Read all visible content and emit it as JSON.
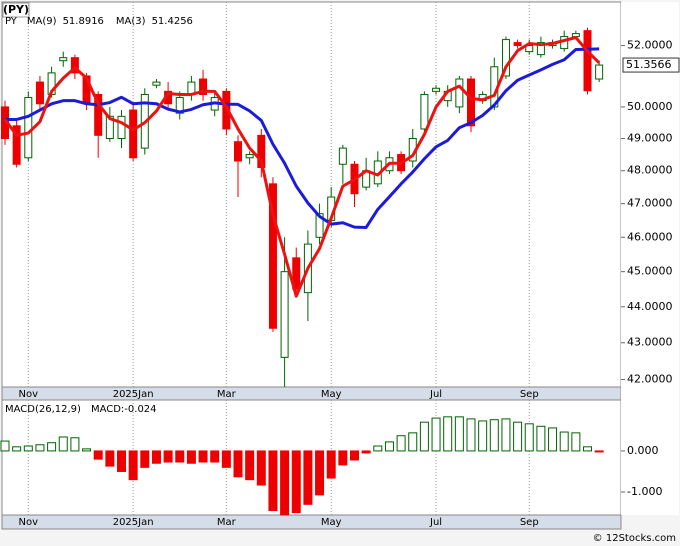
{
  "chart_data": [
    {
      "type": "candlestick",
      "title": "(PY)",
      "ticker": "PY",
      "ticker_color": "#008800",
      "categories": [
        null,
        null,
        "Nov",
        null,
        null,
        null,
        null,
        null,
        null,
        null,
        null,
        "2025Jan",
        null,
        null,
        null,
        null,
        null,
        null,
        null,
        "Mar",
        null,
        null,
        null,
        null,
        null,
        null,
        null,
        null,
        "May",
        null,
        null,
        null,
        null,
        null,
        null,
        null,
        null,
        "Jul",
        null,
        null,
        null,
        null,
        null,
        null,
        null,
        "Sep",
        null,
        null,
        null,
        null,
        null,
        null
      ],
      "open": [
        50.0,
        49.4,
        48.4,
        50.8,
        50.4,
        51.5,
        51.6,
        51.0,
        50.4,
        49.0,
        49.0,
        49.9,
        48.7,
        50.7,
        50.5,
        49.8,
        50.4,
        50.9,
        49.9,
        50.5,
        48.9,
        48.4,
        49.1,
        47.6,
        42.6,
        45.4,
        44.4,
        46.0,
        46.5,
        48.2,
        48.2,
        47.5,
        47.6,
        48.0,
        48.5,
        48.3,
        49.3,
        50.5,
        50.2,
        50.0,
        50.9,
        50.2,
        50.0,
        51.0,
        52.1,
        51.8,
        51.7,
        52.0,
        51.9,
        52.3,
        52.5,
        50.9
      ],
      "high": [
        50.2,
        49.6,
        50.5,
        51.0,
        51.3,
        51.8,
        51.7,
        51.1,
        50.5,
        50.0,
        49.9,
        50.1,
        50.6,
        50.9,
        50.8,
        50.5,
        51.0,
        51.2,
        50.5,
        50.6,
        49.1,
        48.6,
        49.3,
        47.8,
        46.0,
        45.7,
        46.2,
        47.0,
        47.5,
        48.8,
        48.3,
        48.4,
        48.6,
        48.6,
        48.6,
        49.3,
        50.5,
        50.7,
        50.7,
        51.0,
        51.0,
        50.5,
        51.6,
        52.3,
        52.2,
        52.2,
        52.3,
        52.2,
        52.5,
        52.5,
        52.6,
        51.5
      ],
      "low": [
        48.8,
        48.1,
        48.3,
        49.9,
        50.3,
        51.3,
        50.9,
        49.9,
        48.4,
        48.9,
        48.7,
        48.3,
        48.5,
        50.6,
        49.9,
        49.6,
        50.2,
        50.2,
        49.7,
        49.1,
        47.2,
        48.2,
        47.8,
        43.3,
        41.8,
        44.3,
        43.6,
        45.8,
        46.3,
        47.6,
        46.9,
        47.4,
        47.5,
        47.9,
        47.9,
        48.1,
        49.2,
        50.4,
        50.0,
        49.8,
        49.2,
        50.1,
        49.9,
        50.9,
        51.9,
        51.7,
        51.6,
        51.9,
        51.8,
        52.2,
        50.4,
        50.8
      ],
      "close": [
        49.0,
        48.2,
        50.3,
        50.1,
        51.1,
        51.6,
        51.1,
        50.1,
        49.1,
        49.7,
        49.7,
        48.4,
        50.4,
        50.8,
        50.1,
        50.3,
        50.8,
        50.4,
        50.3,
        49.3,
        48.3,
        48.5,
        48.1,
        43.4,
        45.0,
        44.5,
        45.8,
        46.7,
        47.2,
        48.7,
        47.3,
        48.0,
        48.3,
        48.4,
        48.0,
        49.0,
        50.4,
        50.6,
        50.5,
        50.9,
        49.4,
        50.4,
        51.3,
        52.2,
        52.0,
        52.0,
        52.1,
        52.1,
        52.3,
        52.4,
        50.52,
        51.3566
      ],
      "up_color": "#006400",
      "down_color": "#ee0000",
      "lines": [
        {
          "name": "MA(9)",
          "color": "#1c1cd8",
          "last": 51.8916,
          "values": [
            49.6,
            49.6,
            49.7,
            49.9,
            50.1,
            50.2,
            50.2,
            50.1,
            50.07,
            50.14,
            50.31,
            50.1,
            50.13,
            50.1,
            49.93,
            49.84,
            49.92,
            50.07,
            50.13,
            50.09,
            50.08,
            49.87,
            49.57,
            48.82,
            48.23,
            47.53,
            47.02,
            46.62,
            46.39,
            46.43,
            46.3,
            46.29,
            46.83,
            47.21,
            47.6,
            47.96,
            48.37,
            48.74,
            48.94,
            49.34,
            49.5,
            49.73,
            50.06,
            50.52,
            50.86,
            51.03,
            51.2,
            51.38,
            51.53,
            51.87,
            51.88,
            51.89
          ]
        },
        {
          "name": "MA(3)",
          "color": "#ee1111",
          "last": 51.4256,
          "values": [
            49.6,
            49.1,
            49.17,
            49.53,
            50.5,
            50.93,
            51.27,
            50.93,
            50.1,
            49.63,
            49.5,
            49.27,
            49.5,
            49.87,
            50.43,
            50.4,
            50.4,
            50.5,
            50.5,
            50.0,
            49.3,
            48.7,
            48.3,
            46.67,
            45.5,
            44.3,
            45.1,
            45.67,
            46.57,
            47.53,
            47.73,
            48.0,
            47.87,
            48.23,
            48.23,
            48.47,
            49.13,
            50.0,
            50.5,
            50.67,
            50.27,
            50.23,
            50.37,
            51.3,
            51.83,
            52.07,
            52.03,
            52.07,
            52.17,
            52.27,
            51.81,
            51.43
          ]
        }
      ],
      "last_price": 51.3566,
      "log_scale": true,
      "xgrid": true,
      "ylim": [
        41.8,
        53.47
      ],
      "yticks": [
        {
          "value": 42,
          "label": "42.0000"
        },
        {
          "value": 43,
          "label": "43.0000"
        },
        {
          "value": 44,
          "label": "44.0000"
        },
        {
          "value": 45,
          "label": "45.0000"
        },
        {
          "value": 46,
          "label": "46.0000"
        },
        {
          "value": 47,
          "label": "47.0000"
        },
        {
          "value": 48,
          "label": "48.0000"
        },
        {
          "value": 49,
          "label": "49.0000"
        },
        {
          "value": 50,
          "label": "50.0000"
        },
        {
          "value": 52,
          "label": "52.0000"
        }
      ]
    },
    {
      "type": "bar",
      "title": "MACD(26,12,9)",
      "annotation": "MACD:-0.024",
      "categories": [
        null,
        null,
        "Nov",
        null,
        null,
        null,
        null,
        null,
        null,
        null,
        null,
        "2025Jan",
        null,
        null,
        null,
        null,
        null,
        null,
        null,
        "Mar",
        null,
        null,
        null,
        null,
        null,
        null,
        null,
        null,
        "May",
        null,
        null,
        null,
        null,
        null,
        null,
        null,
        null,
        "Jul",
        null,
        null,
        null,
        null,
        null,
        null,
        null,
        "Sep",
        null,
        null,
        null,
        null,
        null,
        null
      ],
      "values": [
        0.24,
        0.1,
        0.12,
        0.15,
        0.2,
        0.34,
        0.32,
        0.05,
        -0.2,
        -0.37,
        -0.5,
        -0.7,
        -0.4,
        -0.3,
        -0.27,
        -0.27,
        -0.3,
        -0.27,
        -0.27,
        -0.4,
        -0.63,
        -0.7,
        -0.83,
        -1.45,
        -1.56,
        -1.5,
        -1.3,
        -1.07,
        -0.66,
        -0.34,
        -0.22,
        -0.05,
        0.12,
        0.22,
        0.37,
        0.44,
        0.7,
        0.8,
        0.83,
        0.83,
        0.78,
        0.73,
        0.76,
        0.78,
        0.7,
        0.66,
        0.6,
        0.56,
        0.46,
        0.44,
        0.1,
        -0.024
      ],
      "up_color": "#006400",
      "down_color": "#ee0000",
      "xgrid": true,
      "ylim": [
        -1.56,
        1.24
      ],
      "yticks": [
        {
          "value": 0,
          "label": "0.000"
        },
        {
          "value": -1,
          "label": "-1.000"
        }
      ]
    }
  ],
  "footer": "© 12Stocks.com"
}
